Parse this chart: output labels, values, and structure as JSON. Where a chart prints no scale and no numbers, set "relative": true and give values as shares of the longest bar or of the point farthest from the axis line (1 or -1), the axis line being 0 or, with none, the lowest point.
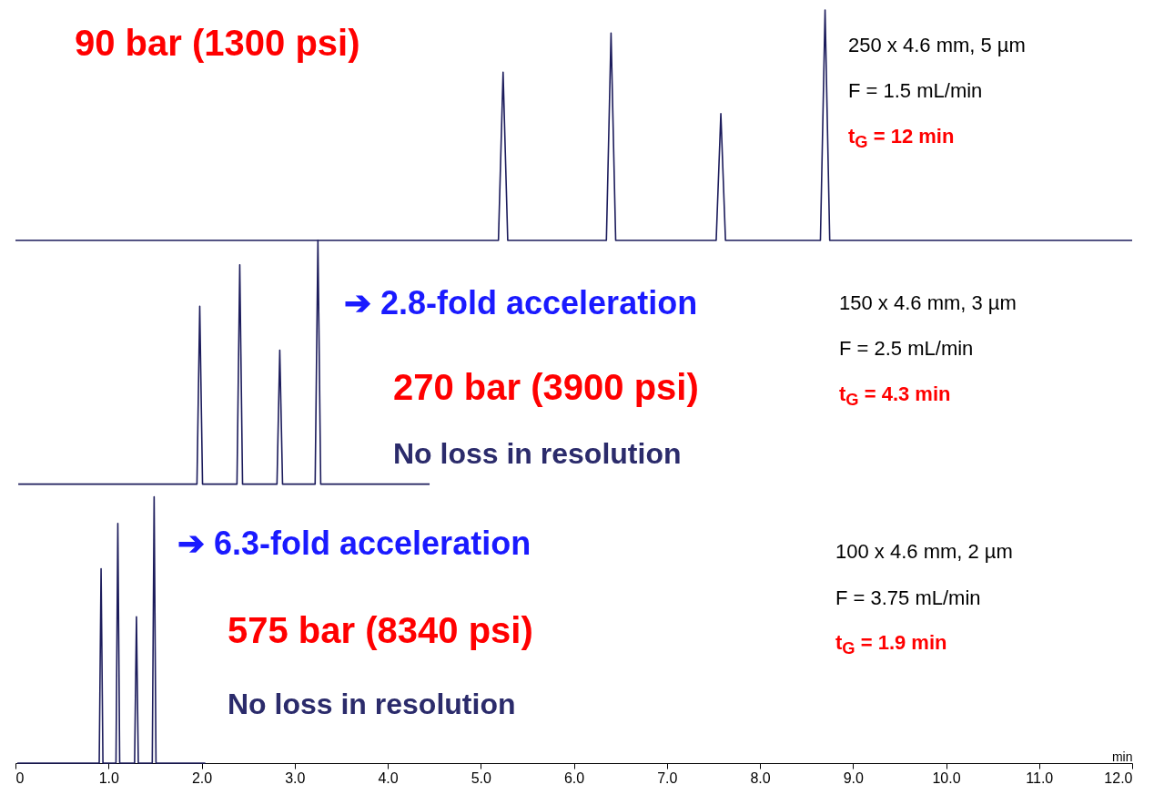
{
  "chart_data": [
    {
      "type": "line",
      "relative": true,
      "color": "#1c1c5c",
      "xlim": [
        0,
        12
      ],
      "tick_labels": false,
      "x": [
        0,
        5.19,
        5.24,
        5.29,
        6.35,
        6.4,
        6.45,
        7.53,
        7.58,
        7.63,
        8.65,
        8.7,
        8.75,
        12
      ],
      "values": [
        0,
        0,
        0.73,
        0,
        0,
        0.9,
        0,
        0,
        0.55,
        0,
        0,
        1,
        0,
        0
      ],
      "annotations": [
        "90 bar (1300 psi)",
        "250 x 4.6 mm, 5 µm",
        "F = 1.5 mL/min",
        "t$_{G}$ = 12 min"
      ]
    },
    {
      "type": "line",
      "relative": true,
      "color": "#1c1c5c",
      "xlim": [
        0,
        12
      ],
      "tick_labels": false,
      "x": [
        0.04,
        1.96,
        1.99,
        2.02,
        2.39,
        2.42,
        2.45,
        2.82,
        2.85,
        2.88,
        3.23,
        3.26,
        3.29,
        4.46
      ],
      "values": [
        0,
        0,
        0.73,
        0,
        0,
        0.9,
        0,
        0,
        0.55,
        0,
        0,
        1,
        0,
        0
      ],
      "annotations": [
        "➔ 2.8-fold acceleration",
        "270 bar (3900 psi)",
        "No loss in resolution",
        "150 x 4.6 mm, 3 µm",
        "F = 2.5 mL/min",
        "t$_{G}$ = 4.3 min"
      ]
    },
    {
      "type": "line",
      "relative": true,
      "color": "#1c1c5c",
      "xlim": [
        0,
        12
      ],
      "tick_labels": "x",
      "xlabel": "min",
      "xticks": [
        0,
        {
          "value": 1,
          "label": "1.0"
        },
        {
          "value": 2,
          "label": "2.0"
        },
        {
          "value": 3,
          "label": "3.0"
        },
        {
          "value": 4,
          "label": "4.0"
        },
        {
          "value": 5,
          "label": "5.0"
        },
        {
          "value": 6,
          "label": "6.0"
        },
        {
          "value": 7,
          "label": "7.0"
        },
        {
          "value": 8,
          "label": "8.0"
        },
        {
          "value": 9,
          "label": "9.0"
        },
        {
          "value": 10,
          "label": "10.0"
        },
        {
          "value": 11,
          "label": "11.0"
        },
        {
          "value": 12,
          "label": "12.0"
        }
      ],
      "x": [
        0.02,
        0.9,
        0.92,
        0.94,
        1.08,
        1.1,
        1.12,
        1.28,
        1.3,
        1.32,
        1.47,
        1.49,
        1.51,
        2.04
      ],
      "values": [
        0,
        0,
        0.73,
        0,
        0,
        0.9,
        0,
        0,
        0.55,
        0,
        0,
        1,
        0,
        0
      ],
      "annotations": [
        "➔ 6.3-fold acceleration",
        "575 bar (8340 psi)",
        "No loss in resolution",
        "100 x 4.6 mm, 2 µm",
        "F = 3.75 mL/min",
        "t$_{G}$ = 1.9 min"
      ]
    }
  ]
}
